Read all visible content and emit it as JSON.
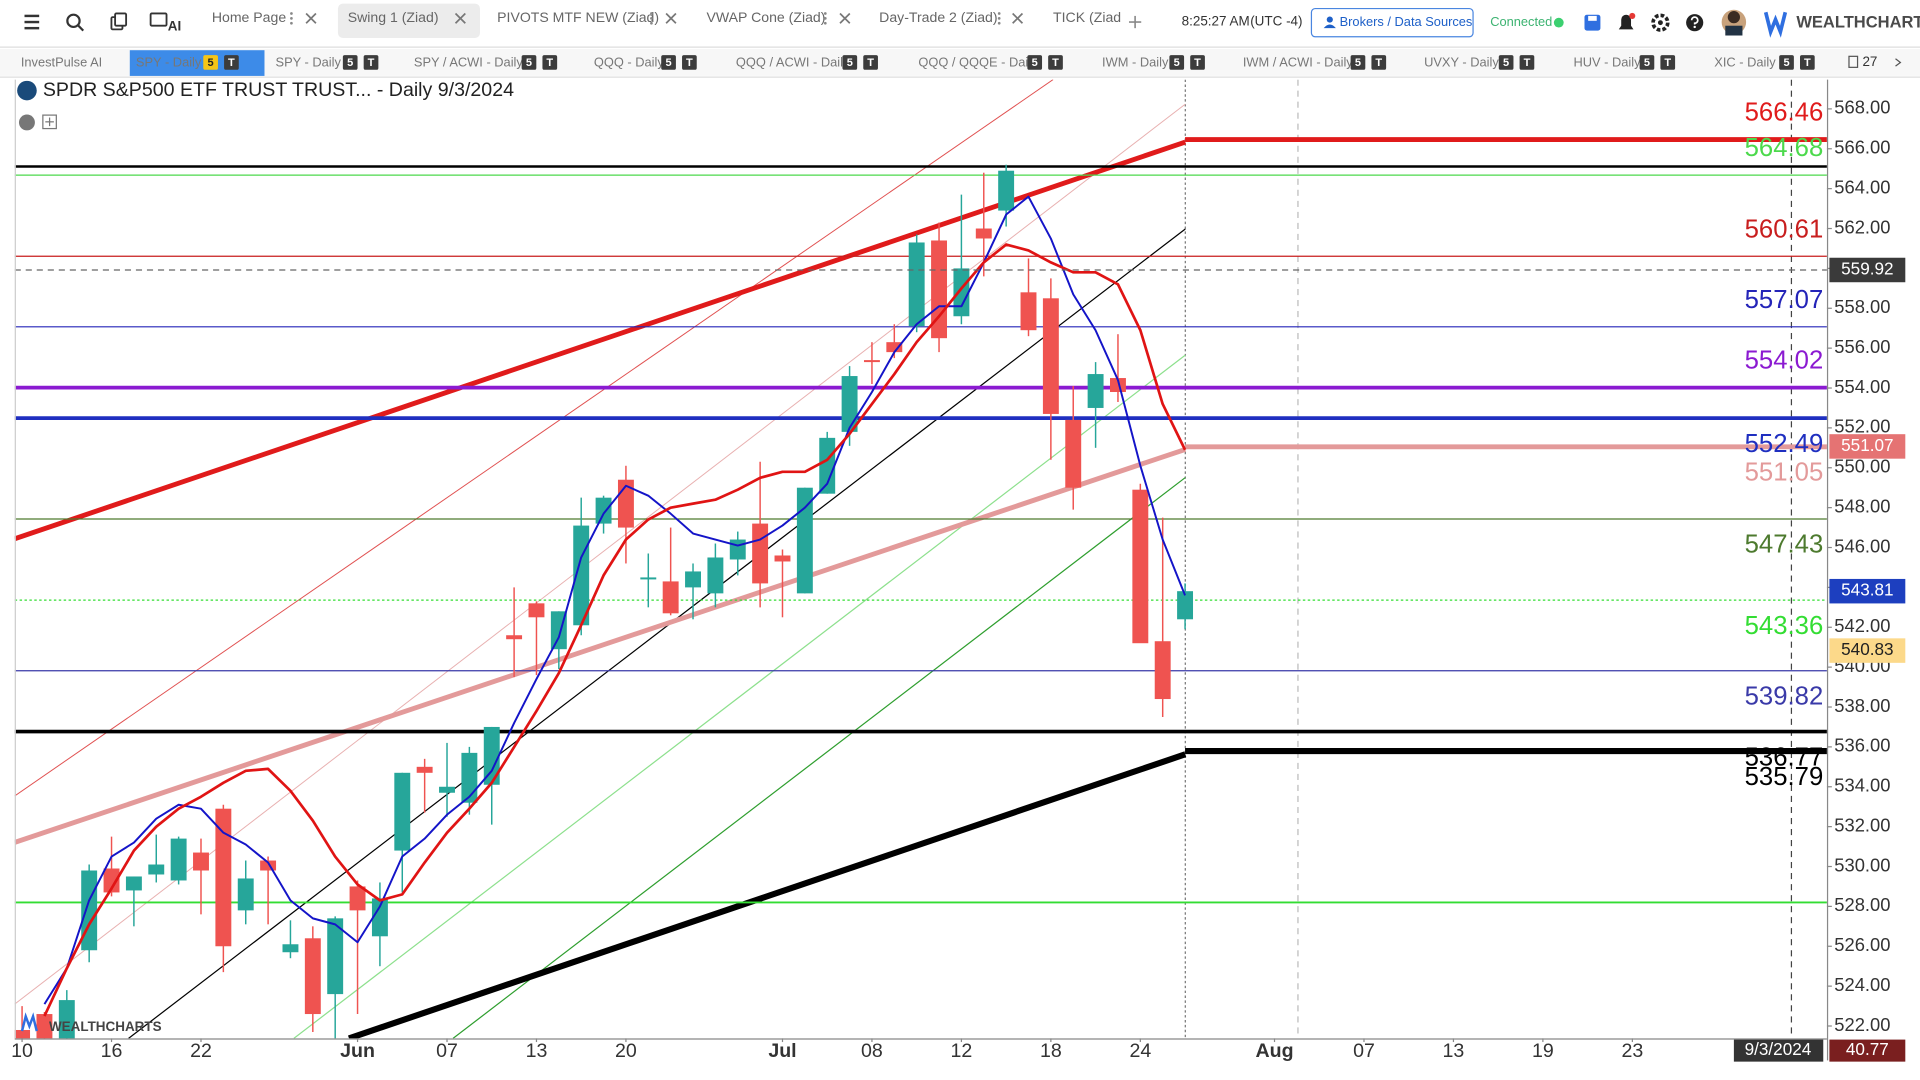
{
  "toolbar": {
    "tabs": [
      {
        "label": "Home Page"
      },
      {
        "label": "Swing 1 (Ziad)",
        "active": true
      },
      {
        "label": "PIVOTS MTF NEW (Ziad)"
      },
      {
        "label": "VWAP Cone (Ziad)"
      },
      {
        "label": "Day-Trade 2 (Ziad)"
      },
      {
        "label": "TICK (Ziad"
      }
    ],
    "ai_label": "AI",
    "time": "8:25:27 AM",
    "timezone": "(UTC -4)",
    "brokers_button": "Brokers / Data Sources",
    "status": "Connected",
    "brand": "WEALTHCHARTS"
  },
  "chart_tabs": [
    {
      "label": "InvestPulse AI"
    },
    {
      "label": "SPY - Daily",
      "badges": [
        "5",
        "T"
      ],
      "active": true
    },
    {
      "label": "SPY - Daily",
      "badges": [
        "5",
        "T"
      ]
    },
    {
      "label": "SPY / ACWI - Daily",
      "badges": [
        "5",
        "T"
      ]
    },
    {
      "label": "QQQ - Daily",
      "badges": [
        "5",
        "T"
      ]
    },
    {
      "label": "QQQ / ACWI - Daily",
      "badges": [
        "5",
        "T"
      ]
    },
    {
      "label": "QQQ / QQQE - Daily",
      "badges": [
        "5",
        "T"
      ]
    },
    {
      "label": "IWM - Daily",
      "badges": [
        "5",
        "T"
      ]
    },
    {
      "label": "IWM / ACWI - Daily",
      "badges": [
        "5",
        "T"
      ]
    },
    {
      "label": "UVXY - Daily",
      "badges": [
        "5",
        "T"
      ]
    },
    {
      "label": "HUV - Daily",
      "badges": [
        "5",
        "T"
      ]
    },
    {
      "label": "XIC - Daily",
      "badges": [
        "5",
        "T"
      ]
    }
  ],
  "chart_tabs_count": "27",
  "chart_data": {
    "type": "candlestick",
    "title": "SPDR S&P500 ETF TRUST TRUST... - Daily 9/3/2024",
    "watermark": "WEALTHCHARTS",
    "up_color": "#26a69a",
    "down_color": "#ef5350",
    "xlim": [
      -0.33,
      80.7
    ],
    "ylim": [
      521.38,
      569.47
    ],
    "xticks": [
      {
        "value": 0,
        "label": "10"
      },
      {
        "value": 4,
        "label": "16"
      },
      {
        "value": 8,
        "label": "22"
      },
      {
        "value": 15,
        "label": "Jun"
      },
      {
        "value": 19,
        "label": "07"
      },
      {
        "value": 23,
        "label": "13"
      },
      {
        "value": 27,
        "label": "20"
      },
      {
        "value": 34,
        "label": "Jul"
      },
      {
        "value": 38,
        "label": "08"
      },
      {
        "value": 42,
        "label": "12"
      },
      {
        "value": 46,
        "label": "18"
      },
      {
        "value": 50,
        "label": "24"
      },
      {
        "value": 56,
        "label": "Aug"
      },
      {
        "value": 60,
        "label": "07"
      },
      {
        "value": 64,
        "label": "13"
      },
      {
        "value": 68,
        "label": "19"
      },
      {
        "value": 72,
        "label": "23"
      }
    ],
    "yticks": [
      {
        "value": 522,
        "label": "522.00"
      },
      {
        "value": 524,
        "label": "524.00"
      },
      {
        "value": 526,
        "label": "526.00"
      },
      {
        "value": 528,
        "label": "528.00"
      },
      {
        "value": 530,
        "label": "530.00"
      },
      {
        "value": 532,
        "label": "532.00"
      },
      {
        "value": 534,
        "label": "534.00"
      },
      {
        "value": 536,
        "label": "536.00"
      },
      {
        "value": 538,
        "label": "538.00"
      },
      {
        "value": 540,
        "label": "540.00"
      },
      {
        "value": 542,
        "label": "542.00"
      },
      {
        "value": 544,
        "label": "544.00"
      },
      {
        "value": 546,
        "label": "546.00"
      },
      {
        "value": 548,
        "label": "548.00"
      },
      {
        "value": 550,
        "label": "550.00"
      },
      {
        "value": 552,
        "label": "552.00"
      },
      {
        "value": 554,
        "label": "554.00"
      },
      {
        "value": 556,
        "label": "556.00"
      },
      {
        "value": 558,
        "label": "558.00"
      },
      {
        "value": 560,
        "label": "560.00"
      },
      {
        "value": 562,
        "label": "562.00"
      },
      {
        "value": 564,
        "label": "564.00"
      },
      {
        "value": 566,
        "label": "566.00"
      },
      {
        "value": 568,
        "label": "568.00"
      }
    ],
    "ohlc": [
      [
        521.8,
        523.0,
        519.9,
        520.8
      ],
      [
        522.6,
        522.7,
        519.7,
        520.9
      ],
      [
        521.1,
        523.8,
        519.4,
        523.3
      ],
      [
        525.8,
        530.1,
        525.2,
        529.8
      ],
      [
        529.9,
        531.5,
        528.5,
        528.7
      ],
      [
        528.8,
        529.5,
        527.0,
        529.5
      ],
      [
        529.6,
        531.6,
        529.2,
        530.1
      ],
      [
        529.3,
        531.5,
        529.1,
        531.4
      ],
      [
        530.7,
        531.4,
        527.6,
        529.8
      ],
      [
        532.9,
        533.1,
        524.7,
        526.0
      ],
      [
        527.8,
        530.3,
        527.1,
        529.4
      ],
      [
        530.3,
        530.5,
        527.1,
        529.8
      ],
      [
        525.7,
        527.3,
        525.4,
        526.1
      ],
      [
        526.4,
        527.0,
        521.7,
        522.6
      ],
      [
        523.6,
        527.5,
        518.4,
        527.4
      ],
      [
        529.0,
        529.3,
        522.6,
        527.8
      ],
      [
        526.5,
        529.2,
        525.0,
        528.4
      ],
      [
        530.8,
        534.7,
        528.7,
        534.7
      ],
      [
        535.0,
        535.4,
        532.7,
        534.7
      ],
      [
        533.7,
        536.2,
        532.5,
        534.0
      ],
      [
        533.2,
        536.0,
        532.6,
        535.7
      ],
      [
        534.1,
        537.0,
        532.1,
        537.0
      ],
      [
        541.6,
        544.0,
        539.5,
        541.4
      ],
      [
        543.2,
        543.3,
        539.6,
        542.5
      ],
      [
        540.9,
        542.8,
        539.9,
        542.8
      ],
      [
        542.1,
        548.5,
        541.6,
        547.1
      ],
      [
        547.2,
        548.6,
        546.7,
        548.5
      ],
      [
        549.4,
        550.1,
        545.2,
        547.0
      ],
      [
        544.4,
        545.7,
        543.0,
        544.5
      ],
      [
        544.3,
        547.0,
        542.6,
        542.7
      ],
      [
        544.0,
        545.2,
        542.4,
        544.8
      ],
      [
        543.7,
        546.2,
        543.0,
        545.5
      ],
      [
        545.4,
        546.8,
        544.6,
        546.4
      ],
      [
        547.2,
        550.3,
        543.0,
        544.2
      ],
      [
        545.6,
        545.9,
        542.5,
        545.3
      ],
      [
        543.7,
        549.0,
        543.7,
        549.0
      ],
      [
        548.7,
        551.8,
        548.7,
        551.5
      ],
      [
        551.8,
        555.1,
        551.1,
        554.6
      ],
      [
        555.4,
        556.3,
        554.2,
        555.3
      ],
      [
        556.3,
        557.2,
        555.5,
        555.8
      ],
      [
        557.1,
        561.7,
        556.8,
        561.3
      ],
      [
        561.4,
        562.3,
        555.8,
        556.5
      ],
      [
        557.6,
        563.7,
        557.2,
        560.0
      ],
      [
        562.0,
        564.8,
        559.6,
        561.5
      ],
      [
        562.9,
        565.2,
        562.1,
        564.9
      ],
      [
        558.8,
        560.5,
        556.6,
        556.9
      ],
      [
        558.5,
        559.5,
        550.4,
        552.7
      ],
      [
        552.4,
        554.1,
        547.9,
        549.0
      ],
      [
        553.0,
        555.3,
        551.0,
        554.7
      ],
      [
        554.5,
        556.7,
        553.3,
        553.8
      ],
      [
        548.9,
        549.2,
        541.6,
        541.2
      ],
      [
        541.3,
        547.5,
        537.5,
        538.4
      ],
      [
        542.4,
        544.2,
        541.9,
        543.81
      ]
    ],
    "series": [
      {
        "color": "#1414c8",
        "width": 1.6,
        "values": [
          null,
          523.1,
          524.9,
          528.3,
          530.5,
          531.2,
          532.4,
          533.1,
          532.9,
          531.7,
          531.1,
          530.2,
          528.3,
          527.4,
          527.1,
          526.2,
          528.0,
          530.5,
          531.4,
          532.6,
          533.5,
          534.8,
          537.2,
          539.4,
          541.5,
          545.5,
          547.7,
          549.1,
          548.6,
          547.7,
          546.7,
          546.4,
          546.1,
          546.4,
          547.1,
          548.0,
          549.2,
          552.0,
          553.8,
          555.8,
          557.2,
          558.1,
          558.1,
          560.3,
          562.7,
          563.6,
          561.5,
          558.7,
          556.9,
          554.4,
          550.1,
          546.4,
          543.6
        ]
      },
      {
        "color": "#e01414",
        "width": 2.2,
        "values": [
          null,
          522.5,
          524.9,
          527.1,
          528.9,
          530.8,
          532.0,
          532.9,
          533.5,
          534.2,
          534.8,
          534.9,
          533.8,
          532.3,
          530.5,
          529.1,
          528.3,
          528.6,
          530.2,
          531.7,
          532.9,
          534.2,
          536.0,
          537.8,
          539.7,
          542.1,
          544.6,
          546.4,
          547.4,
          548.0,
          548.2,
          548.4,
          548.9,
          549.5,
          549.8,
          549.8,
          550.4,
          551.7,
          553.2,
          554.7,
          556.3,
          557.6,
          559.0,
          560.3,
          561.2,
          560.9,
          560.3,
          559.8,
          559.8,
          559.2,
          556.9,
          553.2,
          550.9
        ]
      }
    ],
    "levels": [
      {
        "value": 566.46,
        "color": "#e01b1b",
        "width": 4,
        "start": 52,
        "labeled": true,
        "label_side": "above"
      },
      {
        "value": 565.11,
        "color": "#000000",
        "width": 2
      },
      {
        "value": 564.68,
        "color": "#4cd94c",
        "width": 1,
        "labeled": true,
        "label_side": "above"
      },
      {
        "value": 560.61,
        "color": "#c81e1e",
        "width": 1,
        "labeled": true,
        "label_side": "above"
      },
      {
        "value": 557.07,
        "color": "#2424b8",
        "width": 1,
        "labeled": true,
        "label_side": "above"
      },
      {
        "value": 554.02,
        "color": "#8b1ad1",
        "width": 3,
        "labeled": true,
        "label_side": "above"
      },
      {
        "value": 552.49,
        "color": "#1f2fc0",
        "width": 3,
        "labeled": true,
        "label_side": "below"
      },
      {
        "value": 551.05,
        "color": "#e39a9a",
        "width": 4,
        "start": 52,
        "labeled": true,
        "label_side": "below"
      },
      {
        "value": 547.43,
        "color": "#4d7a2e",
        "width": 1,
        "labeled": true,
        "label_side": "below"
      },
      {
        "value": 543.36,
        "color": "#33dd33",
        "width": 1,
        "dash": true,
        "labeled": true,
        "label_side": "below"
      },
      {
        "value": 539.82,
        "color": "#3a3aa8",
        "width": 1,
        "labeled": true,
        "label_side": "below"
      },
      {
        "value": 536.77,
        "color": "#000000",
        "width": 3,
        "labeled": true,
        "label_side": "below"
      },
      {
        "value": 535.79,
        "color": "#000000",
        "width": 5,
        "start": 52,
        "labeled": true,
        "label_side": "below"
      },
      {
        "value": 528.2,
        "color": "#33dd33",
        "width": 1.5
      }
    ],
    "price_badges": [
      {
        "value": 559.92,
        "color": "#3a3a3a",
        "text_color": "#ffffff",
        "crosshair": true
      },
      {
        "value": 551.07,
        "color": "#e57373",
        "text_color": "#ffffff"
      },
      {
        "value": 543.81,
        "color": "#1d3fbf",
        "text_color": "#ffffff"
      },
      {
        "value": 540.83,
        "color": "#fcd98a",
        "text_color": "#222222"
      }
    ],
    "date_badge": "9/3/2024",
    "corner_badge": "40.77"
  }
}
